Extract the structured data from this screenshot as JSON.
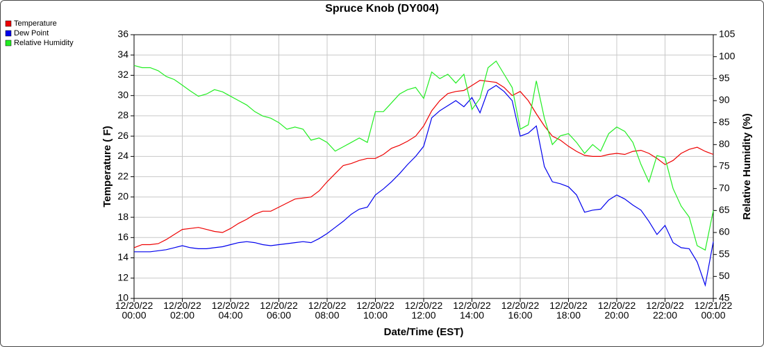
{
  "chart_data": {
    "type": "line",
    "title": "Spruce Knob (DY004)",
    "x_label": "Date/Time (EST)",
    "y_label": "Temperature ( F)",
    "y2_label": "Relative Humidity (%)",
    "x": [
      0,
      20,
      40,
      60,
      80,
      100,
      120,
      140,
      160,
      180,
      200,
      220,
      240,
      260,
      280,
      300,
      320,
      340,
      360,
      380,
      400,
      420,
      440,
      460,
      480,
      500,
      520,
      540,
      560,
      580,
      600,
      620,
      640,
      660,
      680,
      700,
      720,
      740,
      760,
      780,
      800,
      820,
      840,
      860,
      880,
      900,
      920,
      940,
      960,
      980,
      1000,
      1020,
      1040,
      1060,
      1080,
      1100,
      1120,
      1140,
      1160,
      1180,
      1200,
      1220,
      1240,
      1260,
      1280,
      1300,
      1320,
      1340,
      1360,
      1380,
      1400,
      1420,
      1440
    ],
    "xlim": [
      0,
      1440
    ],
    "xticks": [
      {
        "value": 0,
        "label": "12/20/22\n00:00"
      },
      {
        "value": 120,
        "label": "12/20/22\n02:00"
      },
      {
        "value": 240,
        "label": "12/20/22\n04:00"
      },
      {
        "value": 360,
        "label": "12/20/22\n06:00"
      },
      {
        "value": 480,
        "label": "12/20/22\n08:00"
      },
      {
        "value": 600,
        "label": "12/20/22\n10:00"
      },
      {
        "value": 720,
        "label": "12/20/22\n12:00"
      },
      {
        "value": 840,
        "label": "12/20/22\n14:00"
      },
      {
        "value": 960,
        "label": "12/20/22\n16:00"
      },
      {
        "value": 1080,
        "label": "12/20/22\n18:00"
      },
      {
        "value": 1200,
        "label": "12/20/22\n20:00"
      },
      {
        "value": 1320,
        "label": "12/20/22\n22:00"
      },
      {
        "value": 1440,
        "label": "12/21/22\n00:00"
      }
    ],
    "ylim": [
      10,
      36
    ],
    "yticks": [
      10,
      12,
      14,
      16,
      18,
      20,
      22,
      24,
      26,
      28,
      30,
      32,
      34,
      36
    ],
    "y2lim": [
      45,
      105
    ],
    "y2ticks": [
      45,
      50,
      55,
      60,
      65,
      70,
      75,
      80,
      85,
      90,
      95,
      100,
      105
    ],
    "grid": true,
    "legend": "top-left",
    "series": [
      {
        "name": "Temperature",
        "color": "#ee0000",
        "values": [
          15.0,
          15.3,
          15.3,
          15.4,
          15.8,
          16.3,
          16.8,
          16.9,
          17.0,
          16.8,
          16.6,
          16.5,
          16.9,
          17.4,
          17.8,
          18.3,
          18.6,
          18.6,
          19.0,
          19.4,
          19.8,
          19.9,
          20.0,
          20.6,
          21.5,
          22.3,
          23.1,
          23.3,
          23.6,
          23.8,
          23.8,
          24.2,
          24.8,
          25.1,
          25.5,
          26.0,
          27.0,
          28.5,
          29.5,
          30.2,
          30.4,
          30.5,
          31.0,
          31.5,
          31.4,
          31.3,
          30.8,
          30.0,
          30.4,
          29.5,
          28.2,
          27.0,
          26.0,
          25.6,
          25.0,
          24.5,
          24.1,
          24.0,
          24.0,
          24.2,
          24.3,
          24.2,
          24.5,
          24.6,
          24.3,
          23.8,
          23.2,
          23.6,
          24.3,
          24.7,
          24.9,
          24.5,
          24.2
        ]
      },
      {
        "name": "Dew Point",
        "color": "#0000ee",
        "values": [
          14.6,
          14.6,
          14.6,
          14.7,
          14.8,
          15.0,
          15.2,
          15.0,
          14.9,
          14.9,
          15.0,
          15.1,
          15.3,
          15.5,
          15.6,
          15.5,
          15.3,
          15.2,
          15.3,
          15.4,
          15.5,
          15.6,
          15.5,
          15.9,
          16.4,
          17.0,
          17.6,
          18.3,
          18.8,
          19.0,
          20.2,
          20.8,
          21.5,
          22.3,
          23.2,
          24.0,
          25.0,
          27.8,
          28.5,
          29.0,
          29.5,
          28.9,
          29.8,
          28.3,
          30.5,
          31.0,
          30.4,
          29.5,
          26.0,
          26.3,
          27.0,
          23.0,
          21.5,
          21.3,
          21.0,
          20.2,
          18.5,
          18.7,
          18.8,
          19.7,
          20.2,
          19.8,
          19.2,
          18.7,
          17.6,
          16.3,
          17.2,
          15.5,
          15.0,
          14.9,
          13.6,
          11.3,
          15.6
        ]
      },
      {
        "name": "Relative Humidity",
        "color": "#22ee22",
        "axis": "y2",
        "values": [
          98,
          97.5,
          97.5,
          96.8,
          95.5,
          94.8,
          93.5,
          92.2,
          91.0,
          91.5,
          92.5,
          92.0,
          91.0,
          90.0,
          89.0,
          87.5,
          86.5,
          86.0,
          85.0,
          83.5,
          84.0,
          83.5,
          81.0,
          81.5,
          80.5,
          78.5,
          79.5,
          80.5,
          81.5,
          80.5,
          87.5,
          87.5,
          89.5,
          91.5,
          92.5,
          93.0,
          90.5,
          96.5,
          95.0,
          96.0,
          94.0,
          96.0,
          88.0,
          90.5,
          97.5,
          99.0,
          96.0,
          93.0,
          83.5,
          84.5,
          94.5,
          86.0,
          80.0,
          82.0,
          82.5,
          80.5,
          78.0,
          80.0,
          78.5,
          82.5,
          84.0,
          83.0,
          80.5,
          75.5,
          71.5,
          77.5,
          77.0,
          70.0,
          66.0,
          63.5,
          57.0,
          56.0,
          65.0
        ]
      }
    ]
  }
}
